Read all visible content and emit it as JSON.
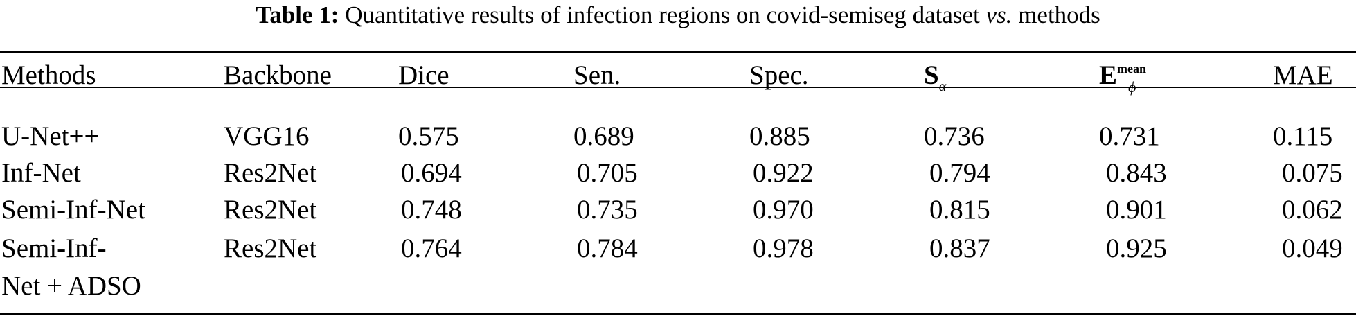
{
  "caption": {
    "label": "Table 1:",
    "text_before": "Quantitative results of infection regions on covid-semiseg dataset",
    "vs": "vs.",
    "text_after": "methods"
  },
  "table": {
    "headers": {
      "methods": "Methods",
      "backbone": "Backbone",
      "dice": "Dice",
      "sen": "Sen.",
      "spec": "Spec.",
      "s_alpha": {
        "base": "S",
        "sub": "α"
      },
      "e_phi_mean": {
        "base": "E",
        "sub": "ϕ",
        "sup": "mean"
      },
      "mae": "MAE"
    },
    "rows": [
      {
        "method": [
          "U-Net++"
        ],
        "backbone": "VGG16",
        "dice": "0.575",
        "sen": "0.689",
        "spec": "0.885",
        "s_alpha": "0.736",
        "e_phi_mean": "0.731",
        "mae": "0.115"
      },
      {
        "method": [
          "Inf-Net"
        ],
        "backbone": "Res2Net",
        "dice": "0.694",
        "sen": "0.705",
        "spec": "0.922",
        "s_alpha": "0.794",
        "e_phi_mean": "0.843",
        "mae": "0.075"
      },
      {
        "method": [
          "Semi-Inf-Net"
        ],
        "backbone": "Res2Net",
        "dice": "0.748",
        "sen": "0.735",
        "spec": "0.970",
        "s_alpha": "0.815",
        "e_phi_mean": "0.901",
        "mae": "0.062"
      },
      {
        "method": [
          "Semi-Inf-",
          "Net + ADSO"
        ],
        "backbone": "Res2Net",
        "dice": "0.764",
        "sen": "0.784",
        "spec": "0.978",
        "s_alpha": "0.837",
        "e_phi_mean": "0.925",
        "mae": "0.049"
      }
    ]
  }
}
